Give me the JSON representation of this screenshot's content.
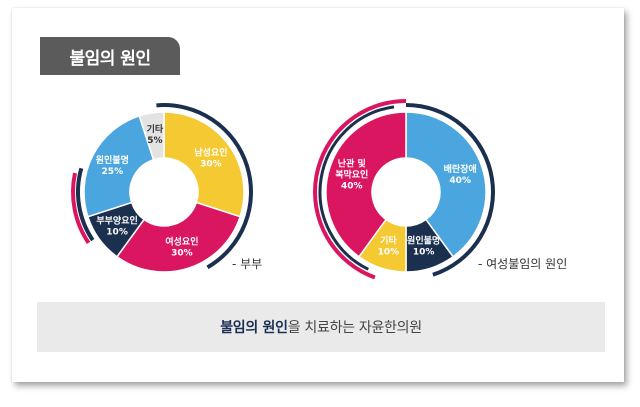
{
  "title": "불임의 원인",
  "chart_data": [
    {
      "type": "pie",
      "legend": "- 부부",
      "slices": [
        {
          "label": "남성요인",
          "value": 30,
          "value_label": "30%",
          "color": "#f4c932",
          "text_color": "#ffffff"
        },
        {
          "label": "여성요인",
          "value": 30,
          "value_label": "30%",
          "color": "#d9165f",
          "text_color": "#ffffff"
        },
        {
          "label": "부부양요인",
          "value": 10,
          "value_label": "10%",
          "color": "#1b2f4e",
          "text_color": "#ffffff"
        },
        {
          "label": "원인불명",
          "value": 25,
          "value_label": "25%",
          "color": "#4ba5de",
          "text_color": "#ffffff"
        },
        {
          "label": "기타",
          "value": 5,
          "value_label": "5%",
          "color": "#e3e3e3",
          "text_color": "#333333"
        }
      ]
    },
    {
      "type": "pie",
      "legend": "- 여성불임의 원인",
      "slices": [
        {
          "label": "배란장애",
          "value": 40,
          "value_label": "40%",
          "color": "#4ba5de",
          "text_color": "#ffffff"
        },
        {
          "label": "원인불명",
          "value": 10,
          "value_label": "10%",
          "color": "#1b2f4e",
          "text_color": "#ffffff"
        },
        {
          "label": "기타",
          "value": 10,
          "value_label": "10%",
          "color": "#f4c932",
          "text_color": "#ffffff"
        },
        {
          "label": "난관 및 복막요인",
          "value": 40,
          "value_label": "40%",
          "color": "#d9165f",
          "text_color": "#ffffff"
        }
      ]
    }
  ],
  "footer": {
    "highlight": "불임의 원인",
    "rest": "을 치료하는 자윤한의원"
  },
  "colors": {
    "badge": "#5b5b5b",
    "navy": "#1b2f4e",
    "footer_bg": "#eaeaea"
  }
}
